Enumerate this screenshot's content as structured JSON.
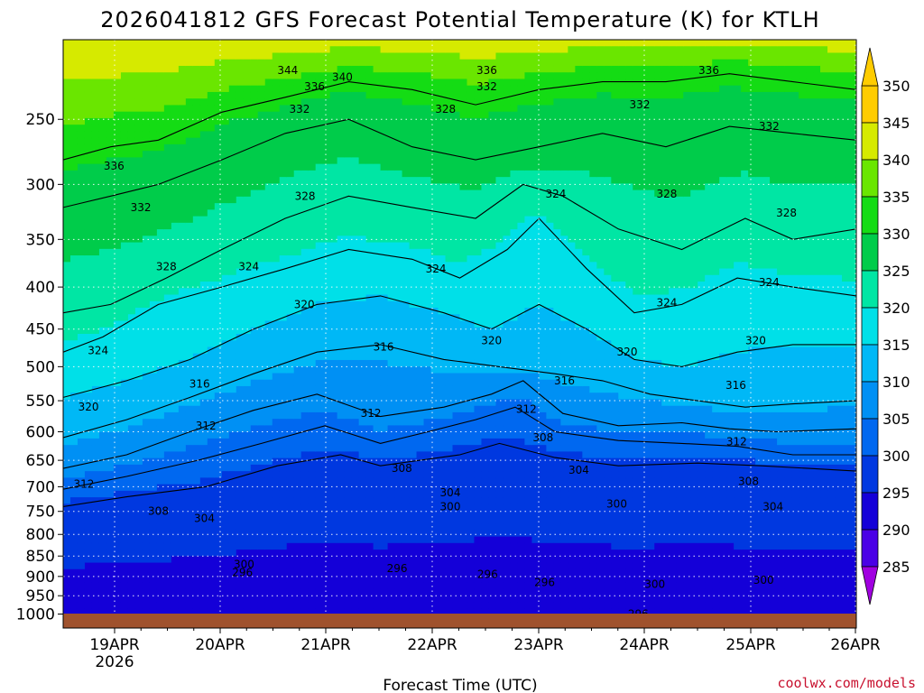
{
  "title": "2026041812 GFS Forecast Potential Temperature (K) for KTLH",
  "xlabel": "Forecast Time (UTC)",
  "credit": "coolwx.com/models",
  "colors": {
    "ground": "#a0522d",
    "gridline": "#ffffff",
    "contour": "#000000"
  },
  "chart_data": {
    "type": "heatmap",
    "title": "2026041812 GFS Forecast Potential Temperature (K) for KTLH",
    "xlabel": "Forecast Time (UTC)",
    "ylabel": "",
    "y_scale": "log-pressure (hPa, inverted)",
    "ylim": [
      1000,
      200
    ],
    "x_ticks": [
      {
        "label": "19APR",
        "sublabel": "2026"
      },
      {
        "label": "20APR"
      },
      {
        "label": "21APR"
      },
      {
        "label": "22APR"
      },
      {
        "label": "23APR"
      },
      {
        "label": "24APR"
      },
      {
        "label": "25APR"
      },
      {
        "label": "26APR"
      }
    ],
    "y_ticks": [
      250,
      300,
      350,
      400,
      450,
      500,
      550,
      600,
      650,
      700,
      750,
      800,
      850,
      900,
      950,
      1000
    ],
    "colorbar": {
      "levels": [
        285,
        290,
        295,
        300,
        305,
        310,
        315,
        320,
        325,
        330,
        335,
        340,
        345,
        350
      ],
      "colors": [
        "#6a0dad",
        "#4a00e6",
        "#1400d8",
        "#0038e0",
        "#0068f0",
        "#0090f4",
        "#00b8f6",
        "#00e0e8",
        "#00e6a4",
        "#00cc4a",
        "#14dc14",
        "#6ae600",
        "#d6ea00",
        "#ffcc00"
      ]
    },
    "contour_levels": [
      296,
      300,
      304,
      308,
      312,
      316,
      320,
      324,
      328,
      332,
      336,
      340,
      344
    ],
    "contour_isolines": [
      {
        "level": 304,
        "x": [
          0.0,
          0.08,
          0.18,
          0.27,
          0.35,
          0.4,
          0.45,
          0.5,
          0.55,
          0.62,
          0.7,
          0.8,
          0.88,
          0.94,
          1.0
        ],
        "p": [
          740,
          720,
          700,
          660,
          640,
          660,
          650,
          640,
          620,
          645,
          660,
          655,
          660,
          665,
          670
        ]
      },
      {
        "level": 308,
        "x": [
          0.0,
          0.08,
          0.17,
          0.25,
          0.33,
          0.4,
          0.46,
          0.52,
          0.57,
          0.62,
          0.7,
          0.78,
          0.85,
          0.92,
          1.0
        ],
        "p": [
          705,
          680,
          650,
          620,
          590,
          620,
          600,
          580,
          560,
          600,
          615,
          620,
          625,
          640,
          640
        ]
      },
      {
        "level": 312,
        "x": [
          0.0,
          0.08,
          0.16,
          0.24,
          0.32,
          0.4,
          0.48,
          0.54,
          0.58,
          0.63,
          0.7,
          0.78,
          0.84,
          0.9,
          1.0
        ],
        "p": [
          665,
          640,
          600,
          565,
          540,
          575,
          560,
          540,
          520,
          570,
          590,
          585,
          595,
          600,
          595
        ]
      },
      {
        "level": 316,
        "x": [
          0.0,
          0.08,
          0.16,
          0.24,
          0.32,
          0.4,
          0.48,
          0.55,
          0.62,
          0.68,
          0.74,
          0.8,
          0.86,
          0.92,
          1.0
        ],
        "p": [
          610,
          580,
          545,
          510,
          480,
          470,
          490,
          500,
          510,
          520,
          540,
          550,
          560,
          555,
          550
        ]
      },
      {
        "level": 320,
        "x": [
          0.0,
          0.08,
          0.16,
          0.24,
          0.32,
          0.4,
          0.48,
          0.54,
          0.6,
          0.66,
          0.72,
          0.78,
          0.85,
          0.92,
          1.0
        ],
        "p": [
          545,
          520,
          490,
          450,
          420,
          410,
          430,
          450,
          420,
          450,
          490,
          500,
          480,
          470,
          470
        ]
      },
      {
        "level": 324,
        "x": [
          0.0,
          0.05,
          0.12,
          0.2,
          0.28,
          0.36,
          0.44,
          0.5,
          0.56,
          0.6,
          0.66,
          0.72,
          0.78,
          0.85,
          0.92,
          1.0
        ],
        "p": [
          480,
          460,
          420,
          400,
          380,
          360,
          370,
          390,
          360,
          330,
          380,
          430,
          420,
          390,
          400,
          410
        ]
      },
      {
        "level": 328,
        "x": [
          0.0,
          0.06,
          0.13,
          0.2,
          0.28,
          0.36,
          0.44,
          0.52,
          0.58,
          0.63,
          0.7,
          0.78,
          0.86,
          0.92,
          1.0
        ],
        "p": [
          430,
          420,
          390,
          360,
          330,
          310,
          320,
          330,
          300,
          310,
          340,
          360,
          330,
          350,
          340
        ]
      },
      {
        "level": 332,
        "x": [
          0.0,
          0.06,
          0.12,
          0.2,
          0.28,
          0.36,
          0.44,
          0.52,
          0.6,
          0.68,
          0.76,
          0.84,
          0.92,
          1.0
        ],
        "p": [
          320,
          310,
          300,
          280,
          260,
          250,
          270,
          280,
          270,
          260,
          270,
          255,
          260,
          265
        ]
      },
      {
        "level": 336,
        "x": [
          0.0,
          0.06,
          0.12,
          0.2,
          0.28,
          0.36,
          0.44,
          0.52,
          0.6,
          0.68,
          0.76,
          0.84,
          0.92,
          1.0
        ],
        "p": [
          280,
          270,
          265,
          245,
          235,
          225,
          230,
          240,
          230,
          225,
          225,
          220,
          225,
          230
        ]
      }
    ],
    "contour_labels": [
      {
        "text": "344",
        "x": 0.283,
        "p": 218
      },
      {
        "text": "340",
        "x": 0.352,
        "p": 222
      },
      {
        "text": "336",
        "x": 0.317,
        "p": 228
      },
      {
        "text": "336",
        "x": 0.534,
        "p": 218
      },
      {
        "text": "332",
        "x": 0.534,
        "p": 228
      },
      {
        "text": "336",
        "x": 0.814,
        "p": 218
      },
      {
        "text": "336",
        "x": 0.064,
        "p": 285
      },
      {
        "text": "332",
        "x": 0.298,
        "p": 243
      },
      {
        "text": "328",
        "x": 0.482,
        "p": 243
      },
      {
        "text": "332",
        "x": 0.727,
        "p": 240
      },
      {
        "text": "332",
        "x": 0.89,
        "p": 255
      },
      {
        "text": "332",
        "x": 0.098,
        "p": 320
      },
      {
        "text": "328",
        "x": 0.305,
        "p": 310
      },
      {
        "text": "324",
        "x": 0.621,
        "p": 308
      },
      {
        "text": "328",
        "x": 0.761,
        "p": 308
      },
      {
        "text": "328",
        "x": 0.912,
        "p": 325
      },
      {
        "text": "328",
        "x": 0.13,
        "p": 378
      },
      {
        "text": "324",
        "x": 0.234,
        "p": 378
      },
      {
        "text": "324",
        "x": 0.47,
        "p": 380
      },
      {
        "text": "324",
        "x": 0.89,
        "p": 395
      },
      {
        "text": "324",
        "x": 0.761,
        "p": 418
      },
      {
        "text": "320",
        "x": 0.304,
        "p": 420
      },
      {
        "text": "324",
        "x": 0.044,
        "p": 478
      },
      {
        "text": "316",
        "x": 0.404,
        "p": 473
      },
      {
        "text": "320",
        "x": 0.54,
        "p": 465
      },
      {
        "text": "320",
        "x": 0.711,
        "p": 480
      },
      {
        "text": "320",
        "x": 0.873,
        "p": 465
      },
      {
        "text": "316",
        "x": 0.172,
        "p": 525
      },
      {
        "text": "316",
        "x": 0.632,
        "p": 520
      },
      {
        "text": "316",
        "x": 0.848,
        "p": 527
      },
      {
        "text": "320",
        "x": 0.032,
        "p": 560
      },
      {
        "text": "312",
        "x": 0.388,
        "p": 570
      },
      {
        "text": "312",
        "x": 0.584,
        "p": 563
      },
      {
        "text": "312",
        "x": 0.18,
        "p": 590
      },
      {
        "text": "308",
        "x": 0.605,
        "p": 610
      },
      {
        "text": "312",
        "x": 0.849,
        "p": 617
      },
      {
        "text": "304",
        "x": 0.65,
        "p": 668
      },
      {
        "text": "312",
        "x": 0.026,
        "p": 695
      },
      {
        "text": "308",
        "x": 0.427,
        "p": 665
      },
      {
        "text": "308",
        "x": 0.864,
        "p": 690
      },
      {
        "text": "304",
        "x": 0.488,
        "p": 712
      },
      {
        "text": "304",
        "x": 0.895,
        "p": 740
      },
      {
        "text": "308",
        "x": 0.12,
        "p": 750
      },
      {
        "text": "300",
        "x": 0.488,
        "p": 740
      },
      {
        "text": "300",
        "x": 0.698,
        "p": 735
      },
      {
        "text": "304",
        "x": 0.178,
        "p": 765
      },
      {
        "text": "300",
        "x": 0.228,
        "p": 870
      },
      {
        "text": "296",
        "x": 0.226,
        "p": 890
      },
      {
        "text": "296",
        "x": 0.421,
        "p": 880
      },
      {
        "text": "296",
        "x": 0.535,
        "p": 895
      },
      {
        "text": "296",
        "x": 0.607,
        "p": 915
      },
      {
        "text": "300",
        "x": 0.746,
        "p": 920
      },
      {
        "text": "300",
        "x": 0.883,
        "p": 910
      },
      {
        "text": "296",
        "x": 0.725,
        "p": 1000
      }
    ],
    "legend": "colorbar-right",
    "grid": true
  }
}
